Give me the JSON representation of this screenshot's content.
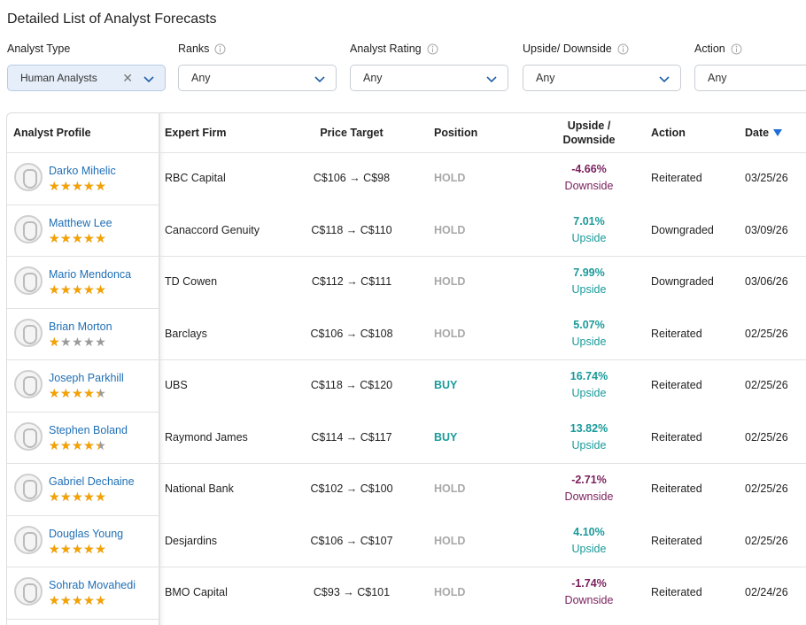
{
  "title": "Detailed List of Analyst Forecasts",
  "filters": [
    {
      "label": "Analyst Type",
      "value": "Human Analysts"
    },
    {
      "label": "Ranks",
      "value": "Any"
    },
    {
      "label": "Analyst Rating",
      "value": "Any"
    },
    {
      "label": "Upside/ Downside",
      "value": "Any"
    },
    {
      "label": "Action",
      "value": "Any"
    }
  ],
  "table": {
    "headers": [
      "Analyst Profile",
      "Expert Firm",
      "Price Target",
      "Position",
      "Upside / Downside",
      "Action",
      "Date"
    ],
    "rows": [
      {
        "name": "Darko Mihelic",
        "rating": 5,
        "firm": "RBC Capital",
        "price_target": "C$106 → C$98",
        "position": "HOLD",
        "upside": "-4.66%",
        "direction": "Downside",
        "action": "Reiterated",
        "date": "03/25/26"
      },
      {
        "name": "Matthew Lee",
        "rating": 5,
        "firm": "Canaccord Genuity",
        "price_target": "C$118 → C$110",
        "position": "HOLD",
        "upside": "7.01%",
        "direction": "Upside",
        "action": "Downgraded",
        "date": "03/09/26"
      },
      {
        "name": "Mario Mendonca",
        "rating": 5,
        "firm": "TD Cowen",
        "price_target": "C$112 → C$111",
        "position": "HOLD",
        "upside": "7.99%",
        "direction": "Upside",
        "action": "Downgraded",
        "date": "03/06/26"
      },
      {
        "name": "Brian Morton",
        "rating": 1,
        "firm": "Barclays",
        "price_target": "C$106 → C$108",
        "position": "HOLD",
        "upside": "5.07%",
        "direction": "Upside",
        "action": "Reiterated",
        "date": "02/25/26"
      },
      {
        "name": "Joseph Parkhill",
        "rating": 4,
        "firm": "UBS",
        "price_target": "C$118 → C$120",
        "position": "BUY",
        "upside": "16.74%",
        "direction": "Upside",
        "action": "Reiterated",
        "date": "02/25/26"
      },
      {
        "name": "Stephen Boland",
        "rating": 4,
        "firm": "Raymond James",
        "price_target": "C$114 → C$117",
        "position": "BUY",
        "upside": "13.82%",
        "direction": "Upside",
        "action": "Reiterated",
        "date": "02/25/26"
      },
      {
        "name": "Gabriel Dechaine",
        "rating": 5,
        "firm": "National Bank",
        "price_target": "C$102 → C$100",
        "position": "HOLD",
        "upside": "-2.71%",
        "direction": "Downside",
        "action": "Reiterated",
        "date": "02/25/26"
      },
      {
        "name": "Douglas Young",
        "rating": 5,
        "firm": "Desjardins",
        "price_target": "C$106 → C$107",
        "position": "HOLD",
        "upside": "4.10%",
        "direction": "Upside",
        "action": "Reiterated",
        "date": "02/25/26"
      },
      {
        "name": "Sohrab Movahedi",
        "rating": 5,
        "firm": "BMO Capital",
        "price_target": "C$93 → C$101",
        "position": "HOLD",
        "upside": "-1.74%",
        "direction": "Downside",
        "action": "Reiterated",
        "date": "02/24/26"
      }
    ]
  }
}
